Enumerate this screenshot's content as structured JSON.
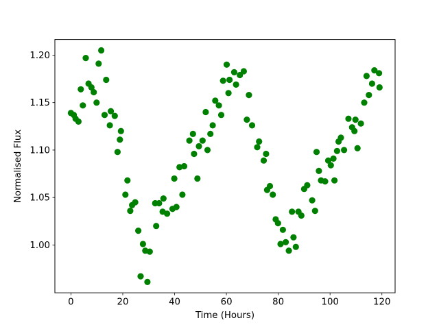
{
  "figure": {
    "background": "#ffffff",
    "frame_color": "#000000"
  },
  "chart_data": {
    "type": "scatter",
    "title": "",
    "xlabel": "Time (Hours)",
    "ylabel": "Normalised Flux",
    "marker_color": "#008000",
    "marker_shape": "circle",
    "grid": "off",
    "legend": "none",
    "xlim": [
      -6.2,
      125.1
    ],
    "ylim": [
      0.9496,
      1.2165
    ],
    "xticks": {
      "values": [
        0,
        20,
        40,
        60,
        80,
        100,
        120
      ],
      "labels": [
        "0",
        "20",
        "40",
        "60",
        "80",
        "100",
        "120"
      ]
    },
    "yticks": {
      "values": [
        1.0,
        1.05,
        1.1,
        1.15,
        1.2
      ],
      "labels": [
        "1.00",
        "1.05",
        "1.10",
        "1.15",
        "1.20"
      ]
    },
    "points": [
      [
        0.0,
        1.139
      ],
      [
        1.1,
        1.137
      ],
      [
        1.8,
        1.133
      ],
      [
        2.9,
        1.13
      ],
      [
        3.8,
        1.164
      ],
      [
        4.6,
        1.147
      ],
      [
        5.7,
        1.197
      ],
      [
        6.8,
        1.17
      ],
      [
        7.9,
        1.166
      ],
      [
        8.8,
        1.161
      ],
      [
        9.9,
        1.15
      ],
      [
        10.7,
        1.191
      ],
      [
        11.7,
        1.205
      ],
      [
        13.0,
        1.137
      ],
      [
        13.6,
        1.174
      ],
      [
        15.0,
        1.126
      ],
      [
        15.4,
        1.141
      ],
      [
        16.9,
        1.136
      ],
      [
        18.0,
        1.098
      ],
      [
        18.9,
        1.111
      ],
      [
        19.3,
        1.12
      ],
      [
        21.0,
        1.053
      ],
      [
        21.8,
        1.068
      ],
      [
        22.9,
        1.036
      ],
      [
        23.6,
        1.042
      ],
      [
        24.8,
        1.045
      ],
      [
        26.0,
        1.015
      ],
      [
        26.9,
        0.967
      ],
      [
        27.8,
        1.001
      ],
      [
        28.7,
        0.994
      ],
      [
        29.5,
        0.961
      ],
      [
        30.4,
        0.993
      ],
      [
        32.5,
        1.044
      ],
      [
        32.9,
        1.02
      ],
      [
        34.0,
        1.044
      ],
      [
        35.4,
        1.035
      ],
      [
        35.7,
        1.049
      ],
      [
        37.1,
        1.033
      ],
      [
        39.2,
        1.038
      ],
      [
        39.9,
        1.07
      ],
      [
        40.7,
        1.04
      ],
      [
        41.9,
        1.082
      ],
      [
        43.0,
        1.053
      ],
      [
        43.7,
        1.083
      ],
      [
        45.7,
        1.11
      ],
      [
        47.1,
        1.117
      ],
      [
        47.5,
        1.096
      ],
      [
        48.8,
        1.07
      ],
      [
        49.4,
        1.104
      ],
      [
        50.8,
        1.11
      ],
      [
        52.0,
        1.14
      ],
      [
        52.7,
        1.1
      ],
      [
        53.8,
        1.117
      ],
      [
        54.7,
        1.126
      ],
      [
        55.7,
        1.152
      ],
      [
        57.1,
        1.147
      ],
      [
        58.0,
        1.137
      ],
      [
        58.7,
        1.173
      ],
      [
        60.1,
        1.19
      ],
      [
        60.8,
        1.16
      ],
      [
        61.2,
        1.174
      ],
      [
        63.0,
        1.182
      ],
      [
        63.7,
        1.169
      ],
      [
        65.2,
        1.179
      ],
      [
        66.7,
        1.183
      ],
      [
        67.9,
        1.132
      ],
      [
        68.7,
        1.158
      ],
      [
        69.9,
        1.126
      ],
      [
        71.9,
        1.103
      ],
      [
        72.6,
        1.109
      ],
      [
        74.4,
        1.089
      ],
      [
        75.3,
        1.096
      ],
      [
        75.7,
        1.058
      ],
      [
        76.8,
        1.062
      ],
      [
        77.9,
        1.053
      ],
      [
        79.0,
        1.027
      ],
      [
        79.9,
        1.023
      ],
      [
        80.9,
        1.001
      ],
      [
        81.8,
        1.016
      ],
      [
        82.9,
        1.003
      ],
      [
        84.1,
        0.994
      ],
      [
        85.3,
        1.035
      ],
      [
        85.9,
        1.008
      ],
      [
        86.8,
        0.998
      ],
      [
        87.8,
        1.035
      ],
      [
        88.9,
        1.031
      ],
      [
        90.0,
        1.059
      ],
      [
        91.2,
        1.063
      ],
      [
        93.1,
        1.047
      ],
      [
        94.2,
        1.036
      ],
      [
        94.8,
        1.098
      ],
      [
        95.7,
        1.078
      ],
      [
        96.5,
        1.068
      ],
      [
        98.1,
        1.067
      ],
      [
        99.3,
        1.089
      ],
      [
        100.3,
        1.084
      ],
      [
        101.3,
        1.091
      ],
      [
        101.7,
        1.068
      ],
      [
        102.7,
        1.099
      ],
      [
        103.3,
        1.109
      ],
      [
        104.2,
        1.113
      ],
      [
        105.4,
        1.1
      ],
      [
        107.1,
        1.133
      ],
      [
        108.5,
        1.124
      ],
      [
        109.4,
        1.12
      ],
      [
        109.8,
        1.132
      ],
      [
        110.6,
        1.102
      ],
      [
        111.9,
        1.128
      ],
      [
        113.2,
        1.15
      ],
      [
        114.1,
        1.178
      ],
      [
        115.0,
        1.158
      ],
      [
        116.2,
        1.17
      ],
      [
        117.1,
        1.184
      ],
      [
        118.9,
        1.181
      ],
      [
        119.1,
        1.166
      ]
    ]
  }
}
